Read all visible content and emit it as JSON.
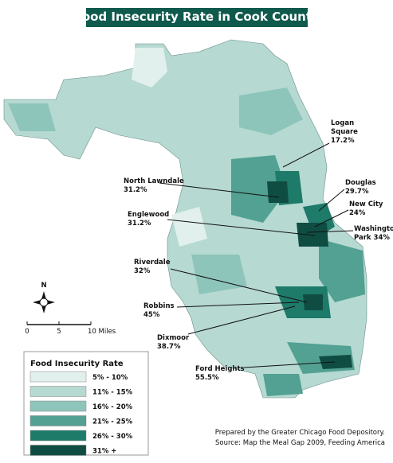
{
  "title": "Food Insecurity Rate in Cook County",
  "callouts": [
    {
      "lines": [
        "Logan",
        "Square",
        "17.2%"
      ]
    },
    {
      "lines": [
        "Douglas",
        "29.7%"
      ]
    },
    {
      "lines": [
        "New City",
        "24%"
      ]
    },
    {
      "lines": [
        "Washington",
        "Park 34%"
      ]
    },
    {
      "lines": [
        "North Lawndale",
        "31.2%"
      ]
    },
    {
      "lines": [
        "Englewood",
        "31.2%"
      ]
    },
    {
      "lines": [
        "Riverdale",
        "32%"
      ]
    },
    {
      "lines": [
        "Robbins",
        "45%"
      ]
    },
    {
      "lines": [
        "Dixmoor",
        "38.7%"
      ]
    },
    {
      "lines": [
        "Ford Heights",
        "55.5%"
      ]
    }
  ],
  "compass": "N",
  "scale": {
    "labels": [
      "0",
      "5",
      "10 Miles"
    ]
  },
  "legend": {
    "title": "Food Insecurity Rate",
    "items": [
      {
        "label": "5% - 10%",
        "color": "#e1f0ec"
      },
      {
        "label": "11% - 15%",
        "color": "#b6d9d2"
      },
      {
        "label": "16% - 20%",
        "color": "#8ec5bb"
      },
      {
        "label": "21% - 25%",
        "color": "#52a193"
      },
      {
        "label": "26% - 30%",
        "color": "#1e7a69"
      },
      {
        "label": "31% +",
        "color": "#0f4d42"
      }
    ]
  },
  "credits": [
    "Prepared by the Greater Chicago Food Depository.",
    "Source: Map the Meal Gap 2009, Feeding America"
  ]
}
